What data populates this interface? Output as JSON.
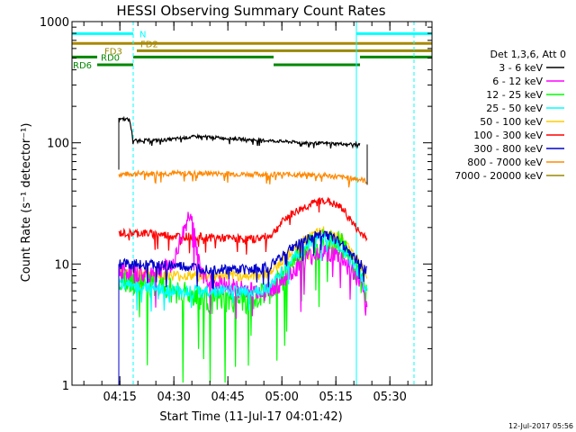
{
  "chart_data": {
    "type": "line",
    "title": "HESSI Observing Summary Count Rates",
    "xlabel": "Start Time (11-Jul-17 04:01:42)",
    "ylabel": "Count Rate (s⁻¹ detector⁻¹)",
    "yscale": "log",
    "ylim": [
      1,
      1000
    ],
    "yticks": [
      "1",
      "10",
      "100",
      "1000"
    ],
    "xlim_minutes": [
      0,
      100
    ],
    "xticks": [
      "04:15",
      "04:30",
      "04:45",
      "05:00",
      "05:15",
      "05:30"
    ],
    "footer_date": "12-Jul-2017 05:56",
    "legend": {
      "placement": "right",
      "title": "Det 1,3,6, Att 0",
      "entries": [
        {
          "label": "3 - 6 keV",
          "color": "#000000"
        },
        {
          "label": "6 - 12 keV",
          "color": "#ff00ff"
        },
        {
          "label": "12 - 25 keV",
          "color": "#00ff00"
        },
        {
          "label": "25 - 50 keV",
          "color": "#00ffff"
        },
        {
          "label": "50 - 100 keV",
          "color": "#ffcc00"
        },
        {
          "label": "100 - 300 keV",
          "color": "#ff0000"
        },
        {
          "label": "300 - 800 keV",
          "color": "#0000cc"
        },
        {
          "label": "800 - 7000 keV",
          "color": "#ff8800"
        },
        {
          "label": "7000 - 20000 keV",
          "color": "#998800"
        }
      ]
    },
    "flags": [
      {
        "label": "N",
        "color": "#00ffff",
        "segments": [
          [
            0,
            17
          ],
          [
            79,
            100
          ]
        ],
        "y": 795
      },
      {
        "label": "FD2",
        "color": "#aa8800",
        "segments": [
          [
            0,
            100
          ]
        ],
        "y": 660
      },
      {
        "label": "FD3",
        "color": "#998800",
        "segments": [
          [
            18,
            100
          ]
        ],
        "y": 575
      },
      {
        "label": "RD0",
        "color": "#008800",
        "segments": [
          [
            0,
            7
          ],
          [
            17,
            56
          ],
          [
            80,
            100
          ]
        ],
        "y": 510
      },
      {
        "label": "RD6",
        "color": "#008800",
        "segments": [
          [
            7,
            17
          ],
          [
            56,
            80
          ]
        ],
        "y": 440
      }
    ],
    "time_marks": [
      {
        "x": 0,
        "style": "solid",
        "color": "#00ffff"
      },
      {
        "x": 17,
        "style": "dashed",
        "color": "#00ffff"
      },
      {
        "x": 79,
        "style": "solid",
        "color": "#00ffff"
      },
      {
        "x": 95,
        "style": "dashed",
        "color": "#00ffff"
      }
    ],
    "series": [
      {
        "name": "3 - 6 keV",
        "color": "#000000",
        "x": [
          13,
          16,
          17,
          25,
          35,
          45,
          55,
          65,
          75,
          80
        ],
        "y": [
          160,
          155,
          105,
          105,
          113,
          108,
          104,
          100,
          98,
          97
        ]
      },
      {
        "name": "6 - 12 keV",
        "color": "#ff00ff",
        "x": [
          13,
          20,
          28,
          33,
          36,
          40,
          50,
          55,
          60,
          65,
          70,
          75,
          80,
          82
        ],
        "y": [
          9,
          8,
          10,
          28,
          8,
          7,
          6,
          6,
          8,
          11,
          13,
          11,
          7,
          4
        ]
      },
      {
        "name": "12 - 25 keV",
        "color": "#00ff00",
        "x": [
          13,
          20,
          30,
          40,
          50,
          55,
          60,
          65,
          70,
          75,
          80,
          82
        ],
        "y": [
          8,
          7,
          6,
          5,
          5,
          6,
          9,
          14,
          17,
          15,
          8,
          6
        ]
      },
      {
        "name": "25 - 50 keV",
        "color": "#00ffff",
        "x": [
          13,
          20,
          30,
          40,
          50,
          55,
          60,
          65,
          70,
          75,
          80,
          82
        ],
        "y": [
          7,
          6.5,
          6,
          6,
          6,
          6.5,
          10,
          14,
          17,
          14,
          8,
          6
        ]
      },
      {
        "name": "50 - 100 keV",
        "color": "#ffcc00",
        "x": [
          13,
          20,
          30,
          40,
          50,
          55,
          60,
          65,
          70,
          75,
          80,
          82
        ],
        "y": [
          9,
          8.5,
          8,
          8,
          8,
          8.5,
          12,
          16,
          19,
          16,
          10,
          8
        ]
      },
      {
        "name": "100 - 300 keV",
        "color": "#ff0000",
        "x": [
          13,
          20,
          30,
          40,
          50,
          55,
          60,
          65,
          70,
          75,
          80,
          82
        ],
        "y": [
          18,
          18,
          17,
          16.5,
          16,
          17,
          25,
          30,
          34,
          29,
          18,
          17
        ]
      },
      {
        "name": "300 - 800 keV",
        "color": "#0000cc",
        "x": [
          13,
          20,
          30,
          40,
          50,
          55,
          60,
          65,
          70,
          75,
          80,
          82
        ],
        "y": [
          10,
          10,
          9.5,
          9,
          9,
          9.5,
          13,
          16,
          18,
          15,
          10,
          9
        ]
      },
      {
        "name": "800 - 7000 keV",
        "color": "#ff8800",
        "x": [
          13,
          20,
          30,
          40,
          50,
          60,
          70,
          80,
          82
        ],
        "y": [
          55,
          56,
          56,
          56,
          55,
          55,
          54,
          50,
          48
        ]
      },
      {
        "name": "7000 - 20000 keV",
        "color": "#998800",
        "x": [],
        "y": []
      }
    ]
  }
}
